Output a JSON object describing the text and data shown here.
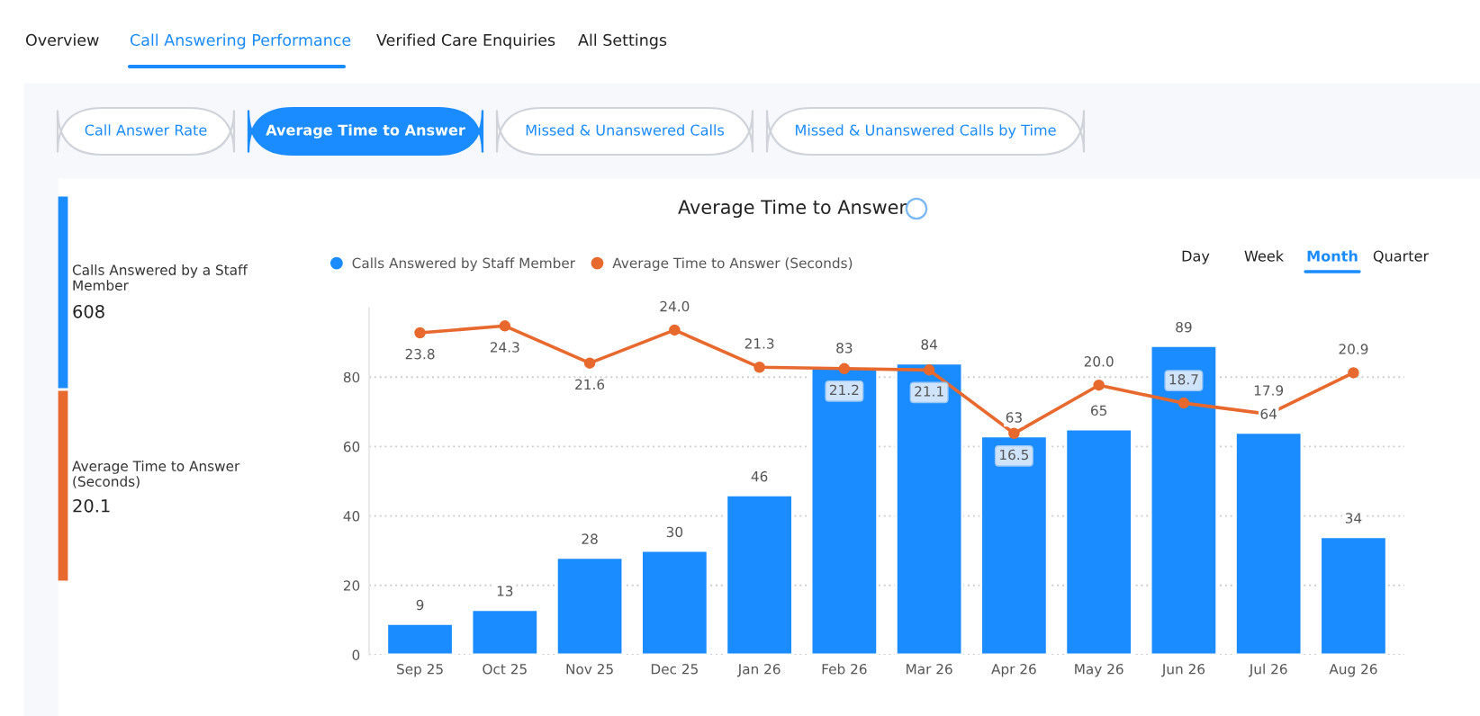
{
  "chart_data": [
    {
      "type": "other",
      "annotations": [
        "Overview",
        "Call Answering Performance",
        "Verified Care Enquiries",
        "All Settings",
        "Call Answer Rate",
        "Average Time to Answer",
        "Missed & Unanswered Calls",
        "Missed & Unanswered Calls by Time",
        "Calls Answered by a Staff Member",
        "608",
        "Average Time to Answer (Seconds)",
        "20.1",
        "Day",
        "Week",
        "Month",
        "Quarter"
      ]
    },
    {
      "type": "bar",
      "title": "Average Time to Answer",
      "categories": [
        "Sep 25",
        "Oct 25",
        "Nov 25",
        "Dec 25",
        "Jan 26",
        "Feb 26",
        "Mar 26",
        "Apr 26",
        "May 26",
        "Jun 26",
        "Jul 26",
        "Aug 26"
      ],
      "series": [
        {
          "name": "Calls Answered by Staff Member",
          "color": "#1a8cff",
          "values": [
            9,
            13,
            28,
            30,
            46,
            83,
            84,
            63,
            65,
            89,
            64,
            34
          ]
        },
        {
          "name": "Average Time to Answer (Seconds)",
          "type": "line",
          "axis": "y2",
          "color": "#e8692e",
          "values": [
            23.8,
            24.3,
            21.6,
            24.0,
            21.3,
            21.2,
            21.1,
            16.5,
            20.0,
            18.7,
            17.9,
            20.9
          ],
          "value_labels": [
            "23.8",
            "24.3",
            "21.6",
            "24.0",
            "21.3",
            "21.2",
            "21.1",
            "16.5",
            "20.0",
            "18.7",
            "17.9",
            "20.9"
          ]
        }
      ],
      "ylim": [
        0,
        100
      ],
      "yticks": [
        0,
        20,
        40,
        60,
        80
      ],
      "grid": "y",
      "legend": "top left",
      "marker": "circle",
      "data_labels": true
    }
  ]
}
